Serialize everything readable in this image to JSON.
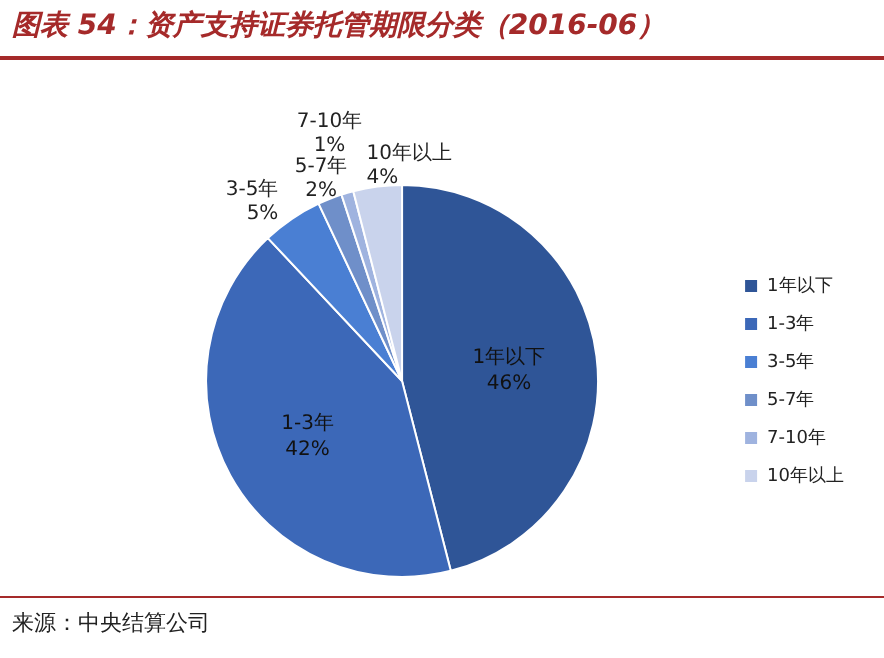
{
  "chart_data": {
    "type": "pie",
    "title": "图表 54：资产支持证券托管期限分类（2016-06）",
    "categories": [
      "1年以下",
      "1-3年",
      "3-5年",
      "5-7年",
      "7-10年",
      "10年以上"
    ],
    "values": [
      46,
      42,
      5,
      2,
      1,
      4
    ],
    "colors": [
      "#2f5597",
      "#3c68b8",
      "#4a7fd3",
      "#6f8fc9",
      "#9fb3df",
      "#c9d3ec"
    ],
    "value_labels": [
      "46%",
      "42%",
      "5%",
      "2%",
      "1%",
      "4%"
    ],
    "legend": "right",
    "annotations": [
      "来源：中央结算公司"
    ]
  }
}
